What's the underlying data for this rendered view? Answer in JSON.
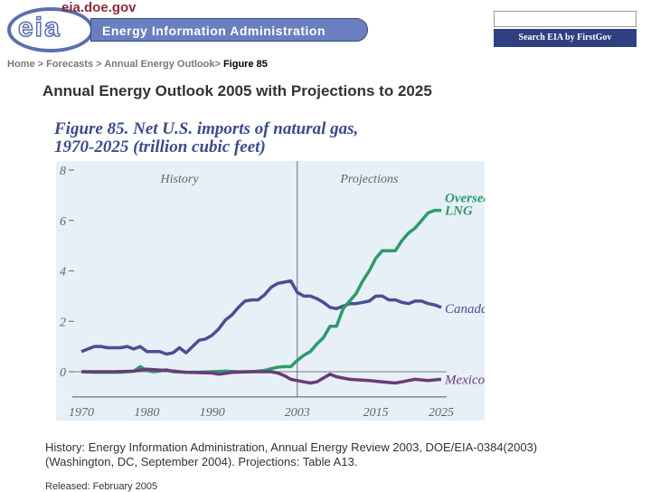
{
  "header": {
    "logo_url_text": "eia.doe.gov",
    "logo_letters": "eia",
    "banner_title": "Energy Information Administration",
    "search_button_label": "Search EIA by FirstGov",
    "search_value": ""
  },
  "breadcrumb": {
    "items": [
      "Home",
      "Forecasts",
      "Annual Energy Outlook"
    ],
    "current": "Figure 85"
  },
  "page_heading": "Annual Energy Outlook 2005 with Projections to 2025",
  "figure_title_line1": "Figure 85. Net U.S. imports of natural gas,",
  "figure_title_line2": "1970-2025 (trillion cubic feet)",
  "source_text": "History: Energy Information Administration, Annual Energy Review 2003, DOE/EIA-0384(2003) (Washington, DC, September 2004). Projections: Table A13.",
  "released_text": "Released: February 2005",
  "chart_data": {
    "type": "line",
    "title": "Figure 85. Net U.S. imports of natural gas, 1970-2025 (trillion cubic feet)",
    "xlim": [
      1970,
      2025
    ],
    "ylim": [
      -1,
      8
    ],
    "x_ticks": [
      1970,
      1980,
      1990,
      2003,
      2015,
      2025
    ],
    "y_ticks": [
      0,
      2,
      4,
      6,
      8
    ],
    "grid": false,
    "divider_year": 2003,
    "region_labels": [
      "History",
      "Projections"
    ],
    "series": [
      {
        "name": "Canada",
        "label": "Canada",
        "color": "#4a4f94",
        "x": [
          1970,
          1971,
          1972,
          1973,
          1974,
          1975,
          1976,
          1977,
          1978,
          1979,
          1980,
          1981,
          1982,
          1983,
          1984,
          1985,
          1986,
          1987,
          1988,
          1989,
          1990,
          1991,
          1992,
          1993,
          1994,
          1995,
          1996,
          1997,
          1998,
          1999,
          2000,
          2001,
          2002,
          2003,
          2004,
          2005,
          2006,
          2007,
          2008,
          2009,
          2010,
          2011,
          2012,
          2013,
          2014,
          2015,
          2016,
          2017,
          2018,
          2019,
          2020,
          2021,
          2022,
          2023,
          2024,
          2025
        ],
        "values": [
          0.8,
          0.9,
          1.0,
          1.0,
          0.95,
          0.95,
          0.95,
          1.0,
          0.9,
          1.0,
          0.8,
          0.8,
          0.8,
          0.7,
          0.75,
          0.95,
          0.75,
          1.0,
          1.25,
          1.3,
          1.45,
          1.7,
          2.05,
          2.25,
          2.55,
          2.8,
          2.85,
          2.85,
          3.05,
          3.35,
          3.5,
          3.55,
          3.6,
          3.15,
          3.0,
          3.0,
          2.9,
          2.75,
          2.55,
          2.5,
          2.6,
          2.7,
          2.7,
          2.75,
          2.8,
          3.0,
          3.0,
          2.85,
          2.85,
          2.75,
          2.7,
          2.8,
          2.8,
          2.7,
          2.65,
          2.55
        ]
      },
      {
        "name": "Overseas LNG",
        "label": "Overseas LNG",
        "color": "#2e9a6a",
        "x": [
          1970,
          1972,
          1974,
          1976,
          1978,
          1979,
          1980,
          1981,
          1982,
          1983,
          1984,
          1986,
          1988,
          1990,
          1992,
          1994,
          1996,
          1998,
          1999,
          2000,
          2001,
          2002,
          2003,
          2004,
          2005,
          2006,
          2007,
          2008,
          2009,
          2010,
          2011,
          2012,
          2013,
          2014,
          2015,
          2016,
          2017,
          2018,
          2019,
          2020,
          2021,
          2022,
          2023,
          2024,
          2025
        ],
        "values": [
          0,
          -0.02,
          -0.02,
          -0.02,
          0.02,
          0.2,
          0.05,
          0.0,
          0.03,
          0.08,
          0.0,
          -0.02,
          -0.02,
          0.0,
          0.02,
          0.0,
          0.0,
          0.05,
          0.12,
          0.18,
          0.2,
          0.2,
          0.45,
          0.65,
          0.8,
          1.1,
          1.35,
          1.8,
          1.8,
          2.5,
          2.8,
          3.1,
          3.6,
          4.0,
          4.5,
          4.8,
          4.8,
          4.8,
          5.2,
          5.5,
          5.7,
          6.0,
          6.3,
          6.4,
          6.4
        ]
      },
      {
        "name": "Mexico",
        "label": "Mexico",
        "color": "#6a3a7a",
        "x": [
          1970,
          1975,
          1978,
          1980,
          1983,
          1986,
          1990,
          1991,
          1993,
          1996,
          1999,
          2000,
          2001,
          2002,
          2003,
          2004,
          2005,
          2006,
          2007,
          2008,
          2009,
          2010,
          2011,
          2012,
          2014,
          2016,
          2018,
          2019,
          2021,
          2023,
          2025
        ],
        "values": [
          0,
          0,
          0.02,
          0.1,
          0.05,
          -0.02,
          -0.05,
          -0.1,
          -0.03,
          0,
          0,
          -0.05,
          -0.15,
          -0.3,
          -0.35,
          -0.4,
          -0.45,
          -0.4,
          -0.25,
          -0.1,
          -0.2,
          -0.25,
          -0.3,
          -0.32,
          -0.35,
          -0.4,
          -0.45,
          -0.4,
          -0.3,
          -0.35,
          -0.3
        ]
      }
    ]
  }
}
